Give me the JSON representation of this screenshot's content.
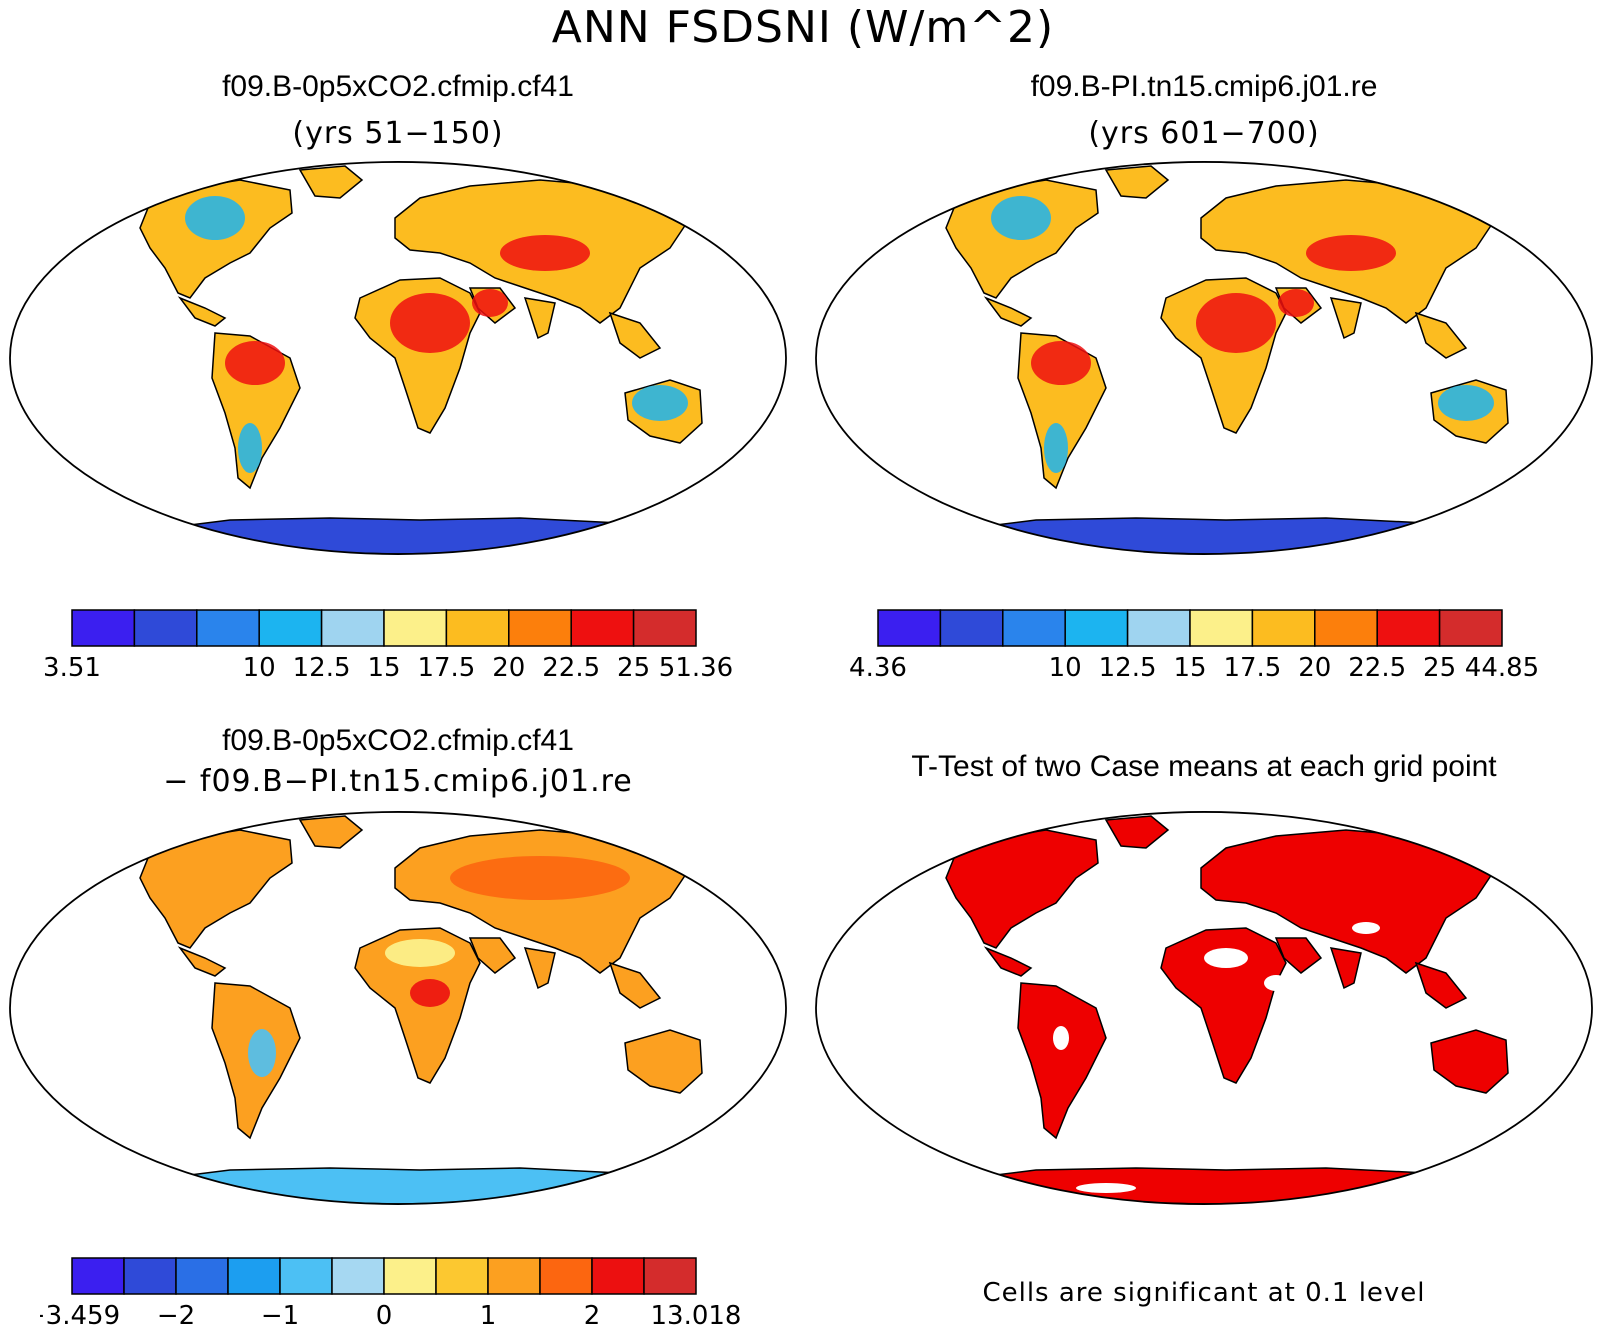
{
  "title": "ANN FSDSNI (W/m^2)",
  "panels": {
    "top_left": {
      "title": "f09.B-0p5xCO2.cfmip.cf41",
      "subtitle": "(yrs 51−150)"
    },
    "top_right": {
      "title": "f09.B-PI.tn15.cmip6.j01.re",
      "subtitle": "(yrs 601−700)"
    },
    "bottom_left": {
      "title": "f09.B-0p5xCO2.cfmip.cf41",
      "subtitle": "− f09.B−PI.tn15.cmip6.j01.re"
    },
    "bottom_right": {
      "title": "T-Test of two Case means at each grid point",
      "note": "Cells are significant at 0.1 level"
    }
  },
  "colorbars": {
    "top_left": {
      "colors": [
        "#3b1ff0",
        "#2f4ad8",
        "#2a84ec",
        "#1cb4f0",
        "#9fd4f0",
        "#fcf08a",
        "#fcbc20",
        "#fc7f0c",
        "#ee1010",
        "#d42c2c"
      ],
      "labels": [
        "3.51",
        "10",
        "12.5",
        "15",
        "17.5",
        "20",
        "22.5",
        "25",
        "51.36"
      ],
      "label_edges": [
        0,
        3,
        4,
        5,
        6,
        7,
        8,
        9,
        10
      ],
      "label_offsets": [
        0,
        0,
        0,
        0,
        0,
        0,
        0,
        0,
        0
      ]
    },
    "top_right": {
      "colors": [
        "#3b1ff0",
        "#2f4ad8",
        "#2a84ec",
        "#1cb4f0",
        "#9fd4f0",
        "#fcf08a",
        "#fcbc20",
        "#fc7f0c",
        "#ee1010",
        "#d42c2c"
      ],
      "labels": [
        "4.36",
        "10",
        "12.5",
        "15",
        "17.5",
        "20",
        "22.5",
        "25",
        "44.85"
      ],
      "label_edges": [
        0,
        3,
        4,
        5,
        6,
        7,
        8,
        9,
        10
      ],
      "label_offsets": [
        0,
        0,
        0,
        0,
        0,
        0,
        0,
        0,
        0
      ]
    },
    "bottom_left": {
      "colors": [
        "#3b1ff0",
        "#2f4ad8",
        "#2a6fe6",
        "#1c9ef0",
        "#4cc0f4",
        "#a6d8f2",
        "#fcf08a",
        "#fcc830",
        "#fca020",
        "#fc6610",
        "#ec1010",
        "#d42c2c"
      ],
      "labels": [
        "−3.459",
        "−2",
        "−1",
        "0",
        "1",
        "2",
        "13.018"
      ],
      "label_edges": [
        0,
        2,
        4,
        6,
        8,
        10,
        12
      ],
      "label_offsets": [
        0,
        0,
        0,
        0,
        0,
        0,
        0
      ]
    }
  },
  "map_colors": {
    "ocean": "#ffffff",
    "significant": "#ee0000",
    "outline": "#000000"
  }
}
